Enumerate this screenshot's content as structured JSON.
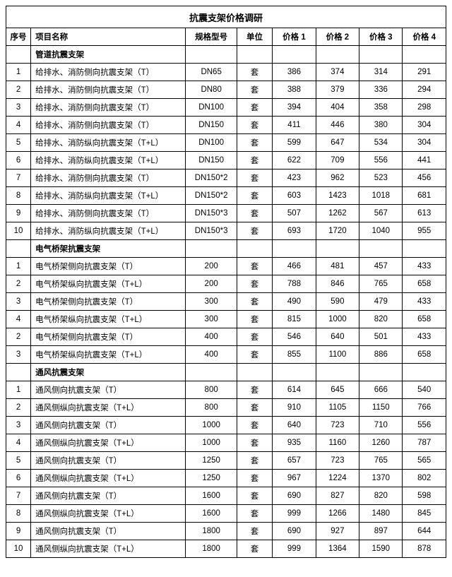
{
  "title": "抗震支架价格调研",
  "columns": {
    "seq": "序号",
    "name": "项目名称",
    "spec": "规格型号",
    "unit": "单位",
    "p1": "价格 1",
    "p2": "价格 2",
    "p3": "价格 3",
    "p4": "价格 4"
  },
  "col_widths": {
    "seq": 32,
    "name": 200,
    "spec": 66,
    "unit": 46,
    "p": 56
  },
  "sections": [
    {
      "heading": "管道抗震支架",
      "rows": [
        {
          "seq": "1",
          "name": "给排水、消防侧向抗震支架（T）",
          "spec": "DN65",
          "unit": "套",
          "p1": "386",
          "p2": "374",
          "p3": "314",
          "p4": "291"
        },
        {
          "seq": "2",
          "name": "给排水、消防侧向抗震支架（T）",
          "spec": "DN80",
          "unit": "套",
          "p1": "388",
          "p2": "379",
          "p3": "336",
          "p4": "294"
        },
        {
          "seq": "3",
          "name": "给排水、消防侧向抗震支架（T）",
          "spec": "DN100",
          "unit": "套",
          "p1": "394",
          "p2": "404",
          "p3": "358",
          "p4": "298"
        },
        {
          "seq": "4",
          "name": "给排水、消防侧向抗震支架（T）",
          "spec": "DN150",
          "unit": "套",
          "p1": "411",
          "p2": "446",
          "p3": "380",
          "p4": "304"
        },
        {
          "seq": "5",
          "name": "给排水、消防纵向抗震支架（T+L）",
          "spec": "DN100",
          "unit": "套",
          "p1": "599",
          "p2": "647",
          "p3": "534",
          "p4": "304"
        },
        {
          "seq": "6",
          "name": "给排水、消防纵向抗震支架（T+L）",
          "spec": "DN150",
          "unit": "套",
          "p1": "622",
          "p2": "709",
          "p3": "556",
          "p4": "441"
        },
        {
          "seq": "7",
          "name": "给排水、消防侧向抗震支架（T）",
          "spec": "DN150*2",
          "unit": "套",
          "p1": "423",
          "p2": "962",
          "p3": "523",
          "p4": "456"
        },
        {
          "seq": "8",
          "name": "给排水、消防纵向抗震支架（T+L）",
          "spec": "DN150*2",
          "unit": "套",
          "p1": "603",
          "p2": "1423",
          "p3": "1018",
          "p4": "681"
        },
        {
          "seq": "9",
          "name": "给排水、消防侧向抗震支架（T）",
          "spec": "DN150*3",
          "unit": "套",
          "p1": "507",
          "p2": "1262",
          "p3": "567",
          "p4": "613"
        },
        {
          "seq": "10",
          "name": "给排水、消防纵向抗震支架（T+L）",
          "spec": "DN150*3",
          "unit": "套",
          "p1": "693",
          "p2": "1720",
          "p3": "1040",
          "p4": "955"
        }
      ]
    },
    {
      "heading": "电气桥架抗震支架",
      "rows": [
        {
          "seq": "1",
          "name": "电气桥架侧向抗震支架（T）",
          "spec": "200",
          "unit": "套",
          "p1": "466",
          "p2": "481",
          "p3": "457",
          "p4": "433"
        },
        {
          "seq": "2",
          "name": "电气桥架纵向抗震支架（T+L）",
          "spec": "200",
          "unit": "套",
          "p1": "788",
          "p2": "846",
          "p3": "765",
          "p4": "658"
        },
        {
          "seq": "3",
          "name": "电气桥架侧向抗震支架（T）",
          "spec": "300",
          "unit": "套",
          "p1": "490",
          "p2": "590",
          "p3": "479",
          "p4": "433"
        },
        {
          "seq": "4",
          "name": "电气桥架纵向抗震支架（T+L）",
          "spec": "300",
          "unit": "套",
          "p1": "815",
          "p2": "1000",
          "p3": "820",
          "p4": "658"
        },
        {
          "seq": "2",
          "name": "电气桥架侧向抗震支架（T）",
          "spec": "400",
          "unit": "套",
          "p1": "546",
          "p2": "640",
          "p3": "501",
          "p4": "433"
        },
        {
          "seq": "3",
          "name": "电气桥架纵向抗震支架（T+L）",
          "spec": "400",
          "unit": "套",
          "p1": "855",
          "p2": "1100",
          "p3": "886",
          "p4": "658"
        }
      ]
    },
    {
      "heading": "通风抗震支架",
      "rows": [
        {
          "seq": "1",
          "name": "通风侧向抗震支架（T）",
          "spec": "800",
          "unit": "套",
          "p1": "614",
          "p2": "645",
          "p3": "666",
          "p4": "540"
        },
        {
          "seq": "2",
          "name": "通风侧纵向抗震支架（T+L）",
          "spec": "800",
          "unit": "套",
          "p1": "910",
          "p2": "1105",
          "p3": "1150",
          "p4": "766"
        },
        {
          "seq": "3",
          "name": "通风侧向抗震支架（T）",
          "spec": "1000",
          "unit": "套",
          "p1": "640",
          "p2": "723",
          "p3": "710",
          "p4": "556"
        },
        {
          "seq": "4",
          "name": "通风侧纵向抗震支架（T+L）",
          "spec": "1000",
          "unit": "套",
          "p1": "935",
          "p2": "1160",
          "p3": "1260",
          "p4": "787"
        },
        {
          "seq": "5",
          "name": "通风侧向抗震支架（T）",
          "spec": "1250",
          "unit": "套",
          "p1": "657",
          "p2": "723",
          "p3": "765",
          "p4": "565"
        },
        {
          "seq": "6",
          "name": "通风侧纵向抗震支架（T+L）",
          "spec": "1250",
          "unit": "套",
          "p1": "967",
          "p2": "1224",
          "p3": "1370",
          "p4": "802"
        },
        {
          "seq": "7",
          "name": "通风侧向抗震支架（T）",
          "spec": "1600",
          "unit": "套",
          "p1": "690",
          "p2": "827",
          "p3": "820",
          "p4": "598"
        },
        {
          "seq": "8",
          "name": "通风侧纵向抗震支架（T+L）",
          "spec": "1600",
          "unit": "套",
          "p1": "999",
          "p2": "1266",
          "p3": "1480",
          "p4": "845"
        },
        {
          "seq": "9",
          "name": "通风侧向抗震支架（T）",
          "spec": "1800",
          "unit": "套",
          "p1": "690",
          "p2": "927",
          "p3": "897",
          "p4": "644"
        },
        {
          "seq": "10",
          "name": "通风侧纵向抗震支架（T+L）",
          "spec": "1800",
          "unit": "套",
          "p1": "999",
          "p2": "1364",
          "p3": "1590",
          "p4": "878"
        }
      ]
    }
  ]
}
